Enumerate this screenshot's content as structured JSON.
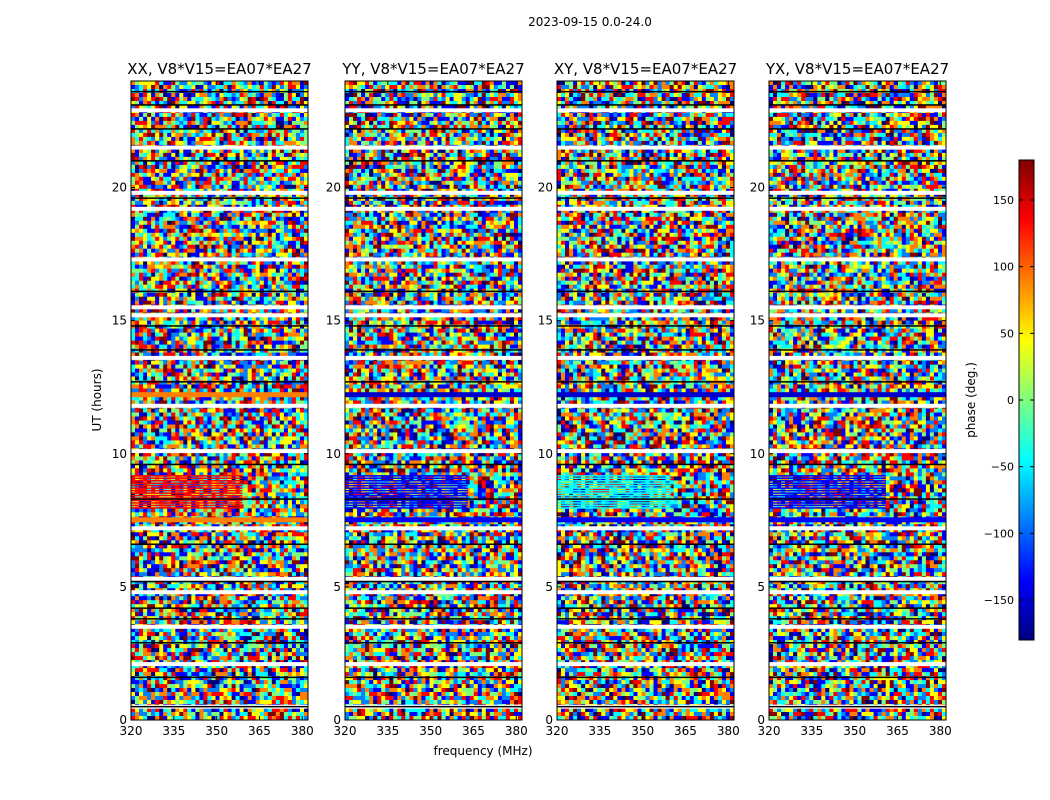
{
  "figure": {
    "suptitle": "2023-09-15 0.0-24.0",
    "xlabel": "frequency (MHz)",
    "ylabel": "UT (hours)"
  },
  "colorbar": {
    "label": "phase (deg.)",
    "ticks": [
      150,
      100,
      50,
      0,
      -50,
      -100,
      -150
    ],
    "tick_labels": [
      "150",
      "100",
      "50",
      "0",
      "−50",
      "−100",
      "−150"
    ],
    "vmin": -180,
    "vmax": 180,
    "colormap": "jet",
    "colors": [
      "#00007f",
      "#0000ff",
      "#007fff",
      "#00ffff",
      "#7fff7f",
      "#ffff00",
      "#ff7f00",
      "#ff0000",
      "#7f0000"
    ]
  },
  "chart_data": {
    "type": "heatmap",
    "xlim": [
      320,
      382
    ],
    "ylim": [
      0,
      24
    ],
    "xticks": [
      320,
      335,
      350,
      365,
      380
    ],
    "yticks": [
      0,
      5,
      10,
      15,
      20
    ],
    "grid": false,
    "value_description": "visibility phase in degrees, mostly random noise",
    "panels": [
      {
        "title": "XX, V8*V15=EA07*EA27",
        "coherent_band": {
          "ut_range": [
            7.9,
            9.2
          ],
          "freq_range": [
            320,
            359
          ],
          "dominant_color": "#ff0000"
        },
        "lower_strip": {
          "ut": 7.5,
          "dominant_color": "#ff7f00"
        },
        "upper_strip": {
          "ut": 12.2,
          "dominant_color": "#ff7f00"
        }
      },
      {
        "title": "YY, V8*V15=EA07*EA27",
        "coherent_band": {
          "ut_range": [
            7.9,
            9.2
          ],
          "freq_range": [
            320,
            363
          ],
          "dominant_color": "#0000ff"
        },
        "lower_strip": {
          "ut": 7.5,
          "dominant_color": "#0000ff"
        },
        "upper_strip": {
          "ut": 12.2,
          "dominant_color": "#0000cc"
        }
      },
      {
        "title": "XY, V8*V15=EA07*EA27",
        "coherent_band": {
          "ut_range": [
            7.9,
            9.2
          ],
          "freq_range": [
            320,
            360
          ],
          "dominant_color": "#00ffff"
        },
        "lower_strip": {
          "ut": 7.5,
          "dominant_color": "#0000ff"
        },
        "upper_strip": {
          "ut": 12.2,
          "dominant_color": "#0000cc"
        }
      },
      {
        "title": "YX, V8*V15=EA07*EA27",
        "coherent_band": {
          "ut_range": [
            7.9,
            9.2
          ],
          "freq_range": [
            320,
            361
          ],
          "dominant_color": "#0000ff"
        },
        "lower_strip": {
          "ut": 7.5,
          "dominant_color": "#0000ff"
        },
        "upper_strip": {
          "ut": 12.2,
          "dominant_color": "#0000cc"
        }
      }
    ],
    "blank_rows_ut": [
      0.5,
      2.1,
      3.5,
      4.8,
      5.3,
      7.2,
      10.1,
      11.8,
      13.6,
      15.2,
      15.5,
      17.3,
      19.2,
      19.8,
      21.5,
      22.9
    ],
    "black_rows_ut": [
      0.5,
      1.6,
      2.9,
      3.8,
      4.2,
      5.2,
      6.6,
      8.3,
      9.6,
      12.7,
      13.9,
      14.8,
      16.1,
      19.6,
      21.0,
      22.2,
      23.1,
      23.6
    ]
  }
}
